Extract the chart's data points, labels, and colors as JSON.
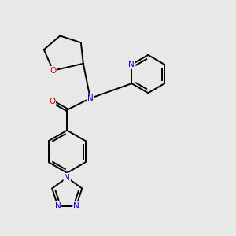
{
  "bg_color": "#e8e8e8",
  "N_color": "#0000cc",
  "O_color": "#cc0000",
  "bond_color": "#000000",
  "lw": 1.4,
  "figsize": [
    3.0,
    3.0
  ],
  "dpi": 100,
  "xlim": [
    0,
    10
  ],
  "ylim": [
    0,
    10
  ],
  "font_size": 7.5
}
